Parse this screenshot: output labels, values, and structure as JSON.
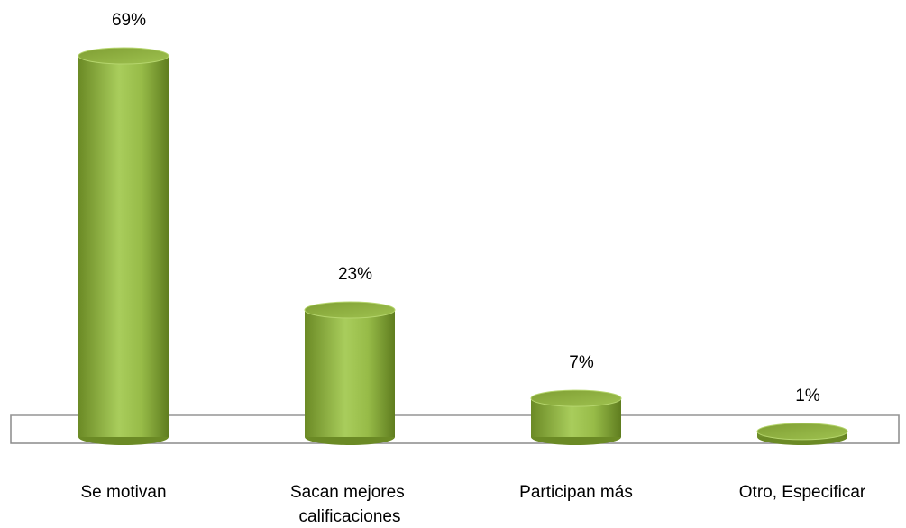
{
  "chart_data": {
    "type": "bar3d",
    "categories": [
      "Se motivan",
      "Sacan mejores calificaciones",
      "Participan más",
      "Otro, Especificar"
    ],
    "values": [
      69,
      23,
      7,
      1
    ],
    "value_labels": [
      "69%",
      "23%",
      "7%",
      "1%"
    ],
    "color": "#92b83f"
  }
}
